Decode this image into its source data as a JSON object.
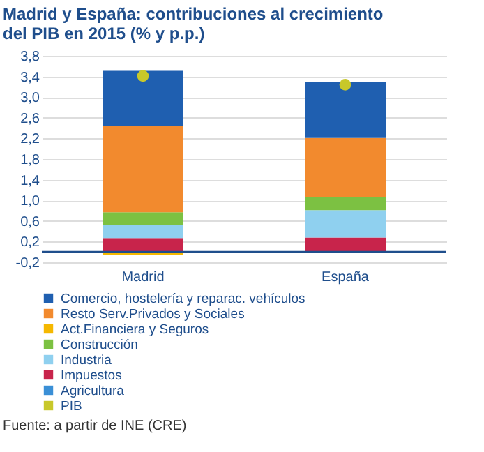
{
  "chart_data": {
    "type": "bar",
    "title": "Madrid y España: contribuciones al crecimiento del PIB en 2015 (% y p.p.)",
    "categories": [
      "Madrid",
      "España"
    ],
    "stacked": true,
    "series": [
      {
        "name": "Agricultura",
        "color": "#3a8fd6",
        "values": [
          null,
          null
        ]
      },
      {
        "name": "Impuestos",
        "color": "#c8244b",
        "values": [
          0.27,
          0.28
        ]
      },
      {
        "name": "Industria",
        "color": "#8fd0ef",
        "values": [
          0.26,
          0.53
        ]
      },
      {
        "name": "Construcción",
        "color": "#7cc142",
        "values": [
          0.24,
          0.26
        ]
      },
      {
        "name": "Act.Financiera y Seguros",
        "color": "#f5b800",
        "values": [
          -0.05,
          null
        ]
      },
      {
        "name": "Resto Serv.Privados y Sociales",
        "color": "#f28a2e",
        "values": [
          1.68,
          1.14
        ]
      },
      {
        "name": "Comercio, hostelería y reparac. vehículos",
        "color": "#1f5fb0",
        "values": [
          1.06,
          1.09
        ]
      },
      {
        "name": "PIB",
        "type": "scatter",
        "color": "#c8c82a",
        "x": [
          "Madrid",
          "España"
        ],
        "values": [
          3.41,
          3.24
        ]
      }
    ],
    "ylim": [
      -0.2,
      3.8
    ],
    "yticks": [
      {
        "value": -0.2,
        "label": "-0,2"
      },
      {
        "value": 0.2,
        "label": "0,2"
      },
      {
        "value": 0.6,
        "label": "0,6"
      },
      {
        "value": 1.0,
        "label": "1,0"
      },
      {
        "value": 1.4,
        "label": "1,4"
      },
      {
        "value": 1.8,
        "label": "1,8"
      },
      {
        "value": 2.2,
        "label": "2,2"
      },
      {
        "value": 2.6,
        "label": "2,6"
      },
      {
        "value": 3.0,
        "label": "3,0"
      },
      {
        "value": 3.4,
        "label": "3,4"
      },
      {
        "value": 3.8,
        "label": "3,8"
      }
    ],
    "ref_lines": [
      {
        "axis": "y",
        "value": 0,
        "color": "#1f4e8c"
      }
    ],
    "grid": "y",
    "legend": "bottom",
    "annotations": [
      "Fuente: a partir de INE (CRE)"
    ]
  }
}
